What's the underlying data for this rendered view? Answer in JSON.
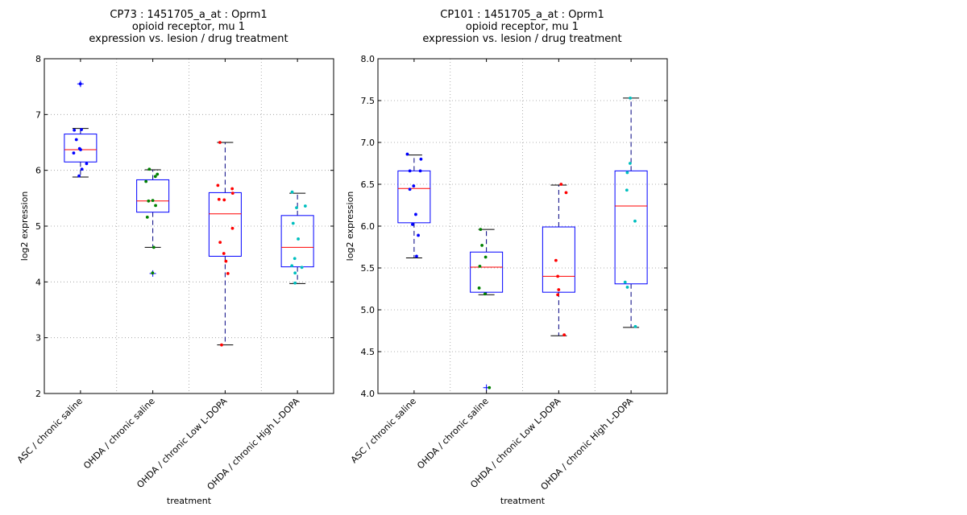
{
  "chart_data": [
    {
      "type": "box",
      "title_lines": [
        "CP73 : 1451705_a_at : Oprm1",
        "opioid receptor, mu 1",
        "expression vs. lesion / drug treatment"
      ],
      "xlabel": "treatment",
      "ylabel": "log2 expression",
      "ylim": [
        2,
        8
      ],
      "yticks": [
        2,
        3,
        4,
        5,
        6,
        7,
        8
      ],
      "ytick_labels": [
        "2",
        "3",
        "4",
        "5",
        "6",
        "7",
        "8"
      ],
      "grid": true,
      "categories": [
        "ASC / chronic saline",
        "OHDA / chronic saline",
        "OHDA / chronic Low L-DOPA",
        "OHDA / chronic High L-DOPA"
      ],
      "boxes": [
        {
          "q1": 6.15,
          "median": 6.37,
          "q3": 6.65,
          "whisker_low": 5.88,
          "whisker_high": 6.75,
          "outliers": [
            7.55
          ]
        },
        {
          "q1": 5.25,
          "median": 5.45,
          "q3": 5.83,
          "whisker_low": 4.62,
          "whisker_high": 6.01,
          "outliers": [
            4.15
          ]
        },
        {
          "q1": 4.46,
          "median": 5.22,
          "q3": 5.6,
          "whisker_low": 2.87,
          "whisker_high": 6.5,
          "outliers": []
        },
        {
          "q1": 4.27,
          "median": 4.62,
          "q3": 5.19,
          "whisker_low": 3.97,
          "whisker_high": 5.59,
          "outliers": []
        }
      ],
      "points": [
        [
          7.55,
          6.73,
          6.72,
          6.55,
          6.39,
          6.37,
          6.31,
          6.12,
          6.02,
          5.9
        ],
        [
          6.02,
          5.93,
          5.89,
          5.8,
          5.46,
          5.45,
          5.37,
          5.16,
          4.62,
          4.16
        ],
        [
          6.5,
          5.73,
          5.67,
          5.59,
          5.48,
          5.47,
          4.96,
          4.71,
          4.51,
          4.37,
          4.15,
          2.87
        ],
        [
          5.61,
          5.36,
          5.33,
          5.05,
          4.77,
          4.42,
          4.29,
          4.26,
          4.16,
          3.98
        ]
      ]
    },
    {
      "type": "box",
      "title_lines": [
        "CP101 : 1451705_a_at : Oprm1",
        "opioid receptor, mu 1",
        "expression vs. lesion / drug treatment"
      ],
      "xlabel": "treatment",
      "ylabel": "log2 expression",
      "ylim": [
        4.0,
        8.0
      ],
      "yticks": [
        4.0,
        4.5,
        5.0,
        5.5,
        6.0,
        6.5,
        7.0,
        7.5,
        8.0
      ],
      "ytick_labels": [
        "4.0",
        "4.5",
        "5.0",
        "5.5",
        "6.0",
        "6.5",
        "7.0",
        "7.5",
        "8.0"
      ],
      "grid": true,
      "categories": [
        "ASC / chronic saline",
        "OHDA / chronic saline",
        "OHDA / chronic Low L-DOPA",
        "OHDA / chronic High L-DOPA"
      ],
      "boxes": [
        {
          "q1": 6.04,
          "median": 6.45,
          "q3": 6.66,
          "whisker_low": 5.62,
          "whisker_high": 6.85,
          "outliers": []
        },
        {
          "q1": 5.21,
          "median": 5.51,
          "q3": 5.69,
          "whisker_low": 5.18,
          "whisker_high": 5.96,
          "outliers": [
            4.07
          ]
        },
        {
          "q1": 5.21,
          "median": 5.4,
          "q3": 5.99,
          "whisker_low": 4.69,
          "whisker_high": 6.49,
          "outliers": []
        },
        {
          "q1": 5.31,
          "median": 6.24,
          "q3": 6.66,
          "whisker_low": 4.79,
          "whisker_high": 7.53,
          "outliers": []
        }
      ],
      "points": [
        [
          6.86,
          6.8,
          6.66,
          6.66,
          6.48,
          6.44,
          6.14,
          6.02,
          5.89,
          5.64
        ],
        [
          5.96,
          5.77,
          5.63,
          5.52,
          5.26,
          5.19,
          4.07
        ],
        [
          6.5,
          6.4,
          5.59,
          5.4,
          5.24,
          5.18,
          4.7
        ],
        [
          7.53,
          6.75,
          6.64,
          6.43,
          6.06,
          5.33,
          5.27,
          4.8
        ]
      ]
    }
  ],
  "colors": {
    "box": "#0000ff",
    "median": "#ff0000",
    "whisker": "#000080",
    "cap": "#000000",
    "grid": "#999999",
    "series": [
      "#0000ff",
      "#008000",
      "#ff0000",
      "#00bfbf"
    ]
  }
}
